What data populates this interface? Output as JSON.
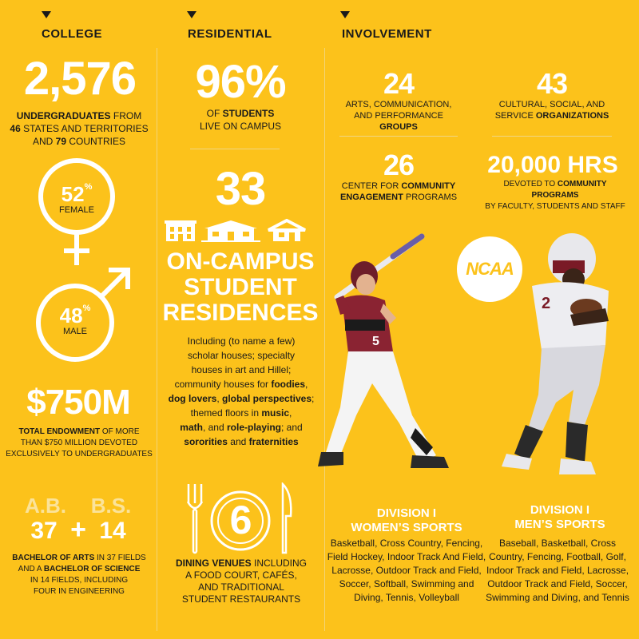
{
  "headers": {
    "college": "COLLEGE",
    "residential": "RESIDENTIAL",
    "involvement": "INVOLVEMENT"
  },
  "college": {
    "undergrads_number": "2,576",
    "undergrads_l1_b": "UNDERGRADUATES",
    "undergrads_l1": " FROM",
    "undergrads_l2_b": "46",
    "undergrads_l2": " STATES AND TERRITORIES",
    "undergrads_l3a": "AND ",
    "undergrads_l3_b": "79",
    "undergrads_l3": " COUNTRIES",
    "female_pct": "52",
    "female_label": "FEMALE",
    "male_pct": "48",
    "male_label": "MALE",
    "pct_sign": "%",
    "endowment_number": "$750M",
    "endowment_l1_b": "TOTAL ENDOWMENT",
    "endowment_l1": " OF MORE",
    "endowment_l2": "THAN $750 MILLION DEVOTED",
    "endowment_l3": "EXCLUSIVELY TO UNDERGRADUATES",
    "ab_label": "A.B.",
    "bs_label": "B.S.",
    "ab_number": "37",
    "bs_number": "14",
    "plus": "+",
    "degrees_l1_b": "BACHELOR OF ARTS",
    "degrees_l1": " IN 37 FIELDS",
    "degrees_l2a": "AND A ",
    "degrees_l2_b": "BACHELOR OF SCIENCE",
    "degrees_l3": "IN 14 FIELDS, INCLUDING",
    "degrees_l4": "FOUR IN ENGINEERING"
  },
  "residential": {
    "pct_number": "96%",
    "pct_l1a": "OF ",
    "pct_l1_b": "STUDENTS",
    "pct_l2": "LIVE ON CAMPUS",
    "res_number": "33",
    "res_title_l1": "ON-CAMPUS",
    "res_title_l2": "STUDENT",
    "res_title_l3": "RESIDENCES",
    "res_desc": [
      [
        "Including (to name a few)"
      ],
      [
        "scholar houses; specialty"
      ],
      [
        "houses in art and Hillel;"
      ],
      [
        "community houses for ",
        "foodies",
        ","
      ],
      [
        "dog lovers",
        ", ",
        "global perspectives",
        ";"
      ],
      [
        "themed floors in ",
        "music",
        ","
      ],
      [
        "math",
        ", and ",
        "role-playing",
        "; and"
      ],
      [
        "sororities",
        " and ",
        "fraternities"
      ]
    ],
    "dining_number": "6",
    "dining_l1_b": "DINING VENUES",
    "dining_l1": " INCLUDING",
    "dining_l2": "A FOOD COURT, CAFÉS,",
    "dining_l3": "AND TRADITIONAL",
    "dining_l4": "STUDENT RESTAURANTS"
  },
  "involvement": {
    "arts_number": "24",
    "arts_l1": "ARTS, COMMUNICATION,",
    "arts_l2a": "AND PERFORMANCE ",
    "arts_l2_b": "GROUPS",
    "cult_number": "43",
    "cult_l1": "CULTURAL, SOCIAL, AND",
    "cult_l2a": "SERVICE ",
    "cult_l2_b": "ORGANIZATIONS",
    "cce_number": "26",
    "cce_l1a": "CENTER FOR ",
    "cce_l1_b": "COMMUNITY",
    "cce_l2_b": "ENGAGEMENT",
    "cce_l2": " PROGRAMS",
    "hrs_number": "20,000 HRS",
    "hrs_l1a": "DEVOTED TO ",
    "hrs_l1_b": "COMMUNITY PROGRAMS",
    "hrs_l2": "BY FACULTY, STUDENTS AND STAFF",
    "ncaa": "NCAA",
    "women_h1": "DIVISION I",
    "women_h2": "WOMEN’S SPORTS",
    "women_lines": [
      "Basketball, Cross Country, Fencing,",
      "Field Hockey, Indoor Track And Field,",
      "Lacrosse, Outdoor Track and Field,",
      "Soccer, Softball, Swimming and",
      "Diving, Tennis, Volleyball"
    ],
    "men_h1": "DIVISION I",
    "men_h2": "MEN’S SPORTS",
    "men_lines": [
      "Baseball, Basketball, Cross",
      "Country, Fencing, Football, Golf,",
      "Indoor Track and Field, Lacrosse,",
      "Outdoor Track and Field, Soccer,",
      "Swimming and Diving, and Tennis"
    ],
    "jersey_softball": "5",
    "jersey_football": "2"
  }
}
